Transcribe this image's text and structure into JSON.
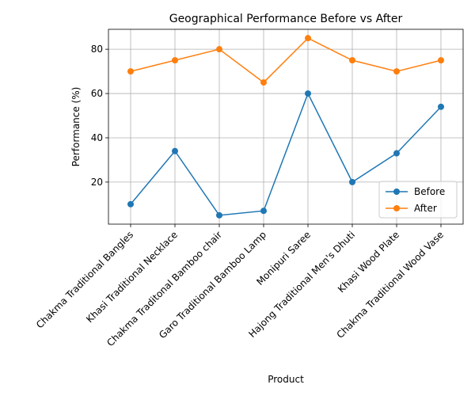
{
  "chart_data": {
    "type": "line",
    "title": "Geographical Performance Before vs After",
    "xlabel": "Product",
    "ylabel": "Performance (%)",
    "categories": [
      "Chakma Traditional Bangles",
      "Khasi Traditional Necklace",
      "Chakma Traditonal Bamboo chair",
      "Garo Traditional Bamboo Lamp",
      "Monipuri Saree",
      "Hajong Traditional Men's Dhuti",
      "Khasi Wood Plate",
      "Chakma Traditional Wood Vase"
    ],
    "series": [
      {
        "name": "Before",
        "color": "#1f77b4",
        "values": [
          10,
          34,
          5,
          7,
          60,
          20,
          33,
          54
        ]
      },
      {
        "name": "After",
        "color": "#ff7f0e",
        "values": [
          70,
          75,
          80,
          65,
          85,
          75,
          70,
          75
        ]
      }
    ],
    "ylim": [
      1.0,
      89.0
    ],
    "yticks": [
      20,
      40,
      60,
      80
    ],
    "grid": true,
    "legend_position": "lower-right",
    "marker": "circle"
  }
}
